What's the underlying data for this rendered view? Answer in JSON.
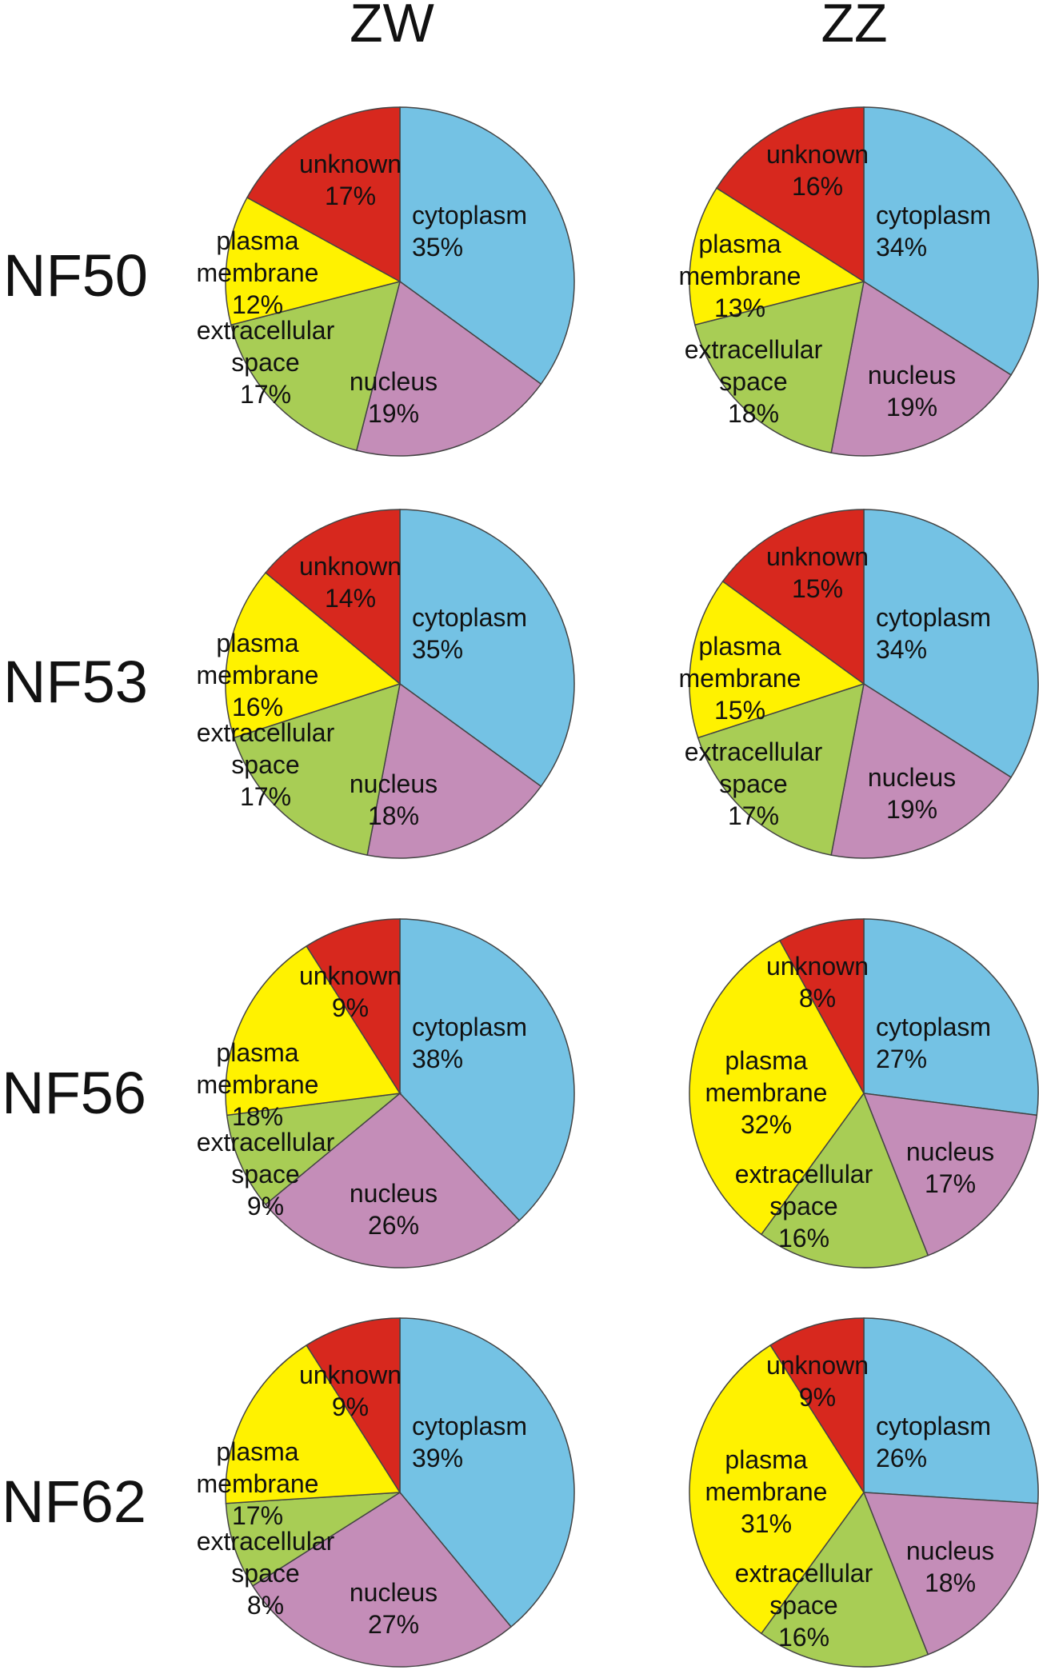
{
  "columns": [
    "ZW",
    "ZZ"
  ],
  "rows": [
    "NF50",
    "NF53",
    "NF56",
    "NF62"
  ],
  "colors": {
    "cytoplasm": "#74c2e4",
    "nucleus": "#c48db8",
    "extracellular space": "#a8cd55",
    "plasma membrane": "#fff200",
    "unknown": "#d7281e"
  },
  "chart_data": [
    {
      "type": "pie",
      "row": "NF50",
      "column": "ZW",
      "slices": [
        {
          "label": "cytoplasm",
          "value": 35
        },
        {
          "label": "nucleus",
          "value": 19
        },
        {
          "label": "extracellular space",
          "value": 17
        },
        {
          "label": "plasma membrane",
          "value": 12
        },
        {
          "label": "unknown",
          "value": 17
        }
      ]
    },
    {
      "type": "pie",
      "row": "NF50",
      "column": "ZZ",
      "slices": [
        {
          "label": "cytoplasm",
          "value": 34
        },
        {
          "label": "nucleus",
          "value": 19
        },
        {
          "label": "extracellular space",
          "value": 18
        },
        {
          "label": "plasma membrane",
          "value": 13
        },
        {
          "label": "unknown",
          "value": 16
        }
      ]
    },
    {
      "type": "pie",
      "row": "NF53",
      "column": "ZW",
      "slices": [
        {
          "label": "cytoplasm",
          "value": 35
        },
        {
          "label": "nucleus",
          "value": 18
        },
        {
          "label": "extracellular space",
          "value": 17
        },
        {
          "label": "plasma membrane",
          "value": 16
        },
        {
          "label": "unknown",
          "value": 14
        }
      ]
    },
    {
      "type": "pie",
      "row": "NF53",
      "column": "ZZ",
      "slices": [
        {
          "label": "cytoplasm",
          "value": 34
        },
        {
          "label": "nucleus",
          "value": 19
        },
        {
          "label": "extracellular space",
          "value": 17
        },
        {
          "label": "plasma membrane",
          "value": 15
        },
        {
          "label": "unknown",
          "value": 15
        }
      ]
    },
    {
      "type": "pie",
      "row": "NF56",
      "column": "ZW",
      "slices": [
        {
          "label": "cytoplasm",
          "value": 38
        },
        {
          "label": "nucleus",
          "value": 26
        },
        {
          "label": "extracellular space",
          "value": 9
        },
        {
          "label": "plasma membrane",
          "value": 18
        },
        {
          "label": "unknown",
          "value": 9
        }
      ]
    },
    {
      "type": "pie",
      "row": "NF56",
      "column": "ZZ",
      "slices": [
        {
          "label": "cytoplasm",
          "value": 27
        },
        {
          "label": "nucleus",
          "value": 17
        },
        {
          "label": "extracellular space",
          "value": 16
        },
        {
          "label": "plasma membrane",
          "value": 32
        },
        {
          "label": "unknown",
          "value": 8
        }
      ]
    },
    {
      "type": "pie",
      "row": "NF62",
      "column": "ZW",
      "slices": [
        {
          "label": "cytoplasm",
          "value": 39
        },
        {
          "label": "nucleus",
          "value": 27
        },
        {
          "label": "extracellular space",
          "value": 8
        },
        {
          "label": "plasma membrane",
          "value": 17
        },
        {
          "label": "unknown",
          "value": 9
        }
      ]
    },
    {
      "type": "pie",
      "row": "NF62",
      "column": "ZZ",
      "slices": [
        {
          "label": "cytoplasm",
          "value": 26
        },
        {
          "label": "nucleus",
          "value": 18
        },
        {
          "label": "extracellular space",
          "value": 16
        },
        {
          "label": "plasma membrane",
          "value": 31
        },
        {
          "label": "unknown",
          "value": 9
        }
      ]
    }
  ]
}
